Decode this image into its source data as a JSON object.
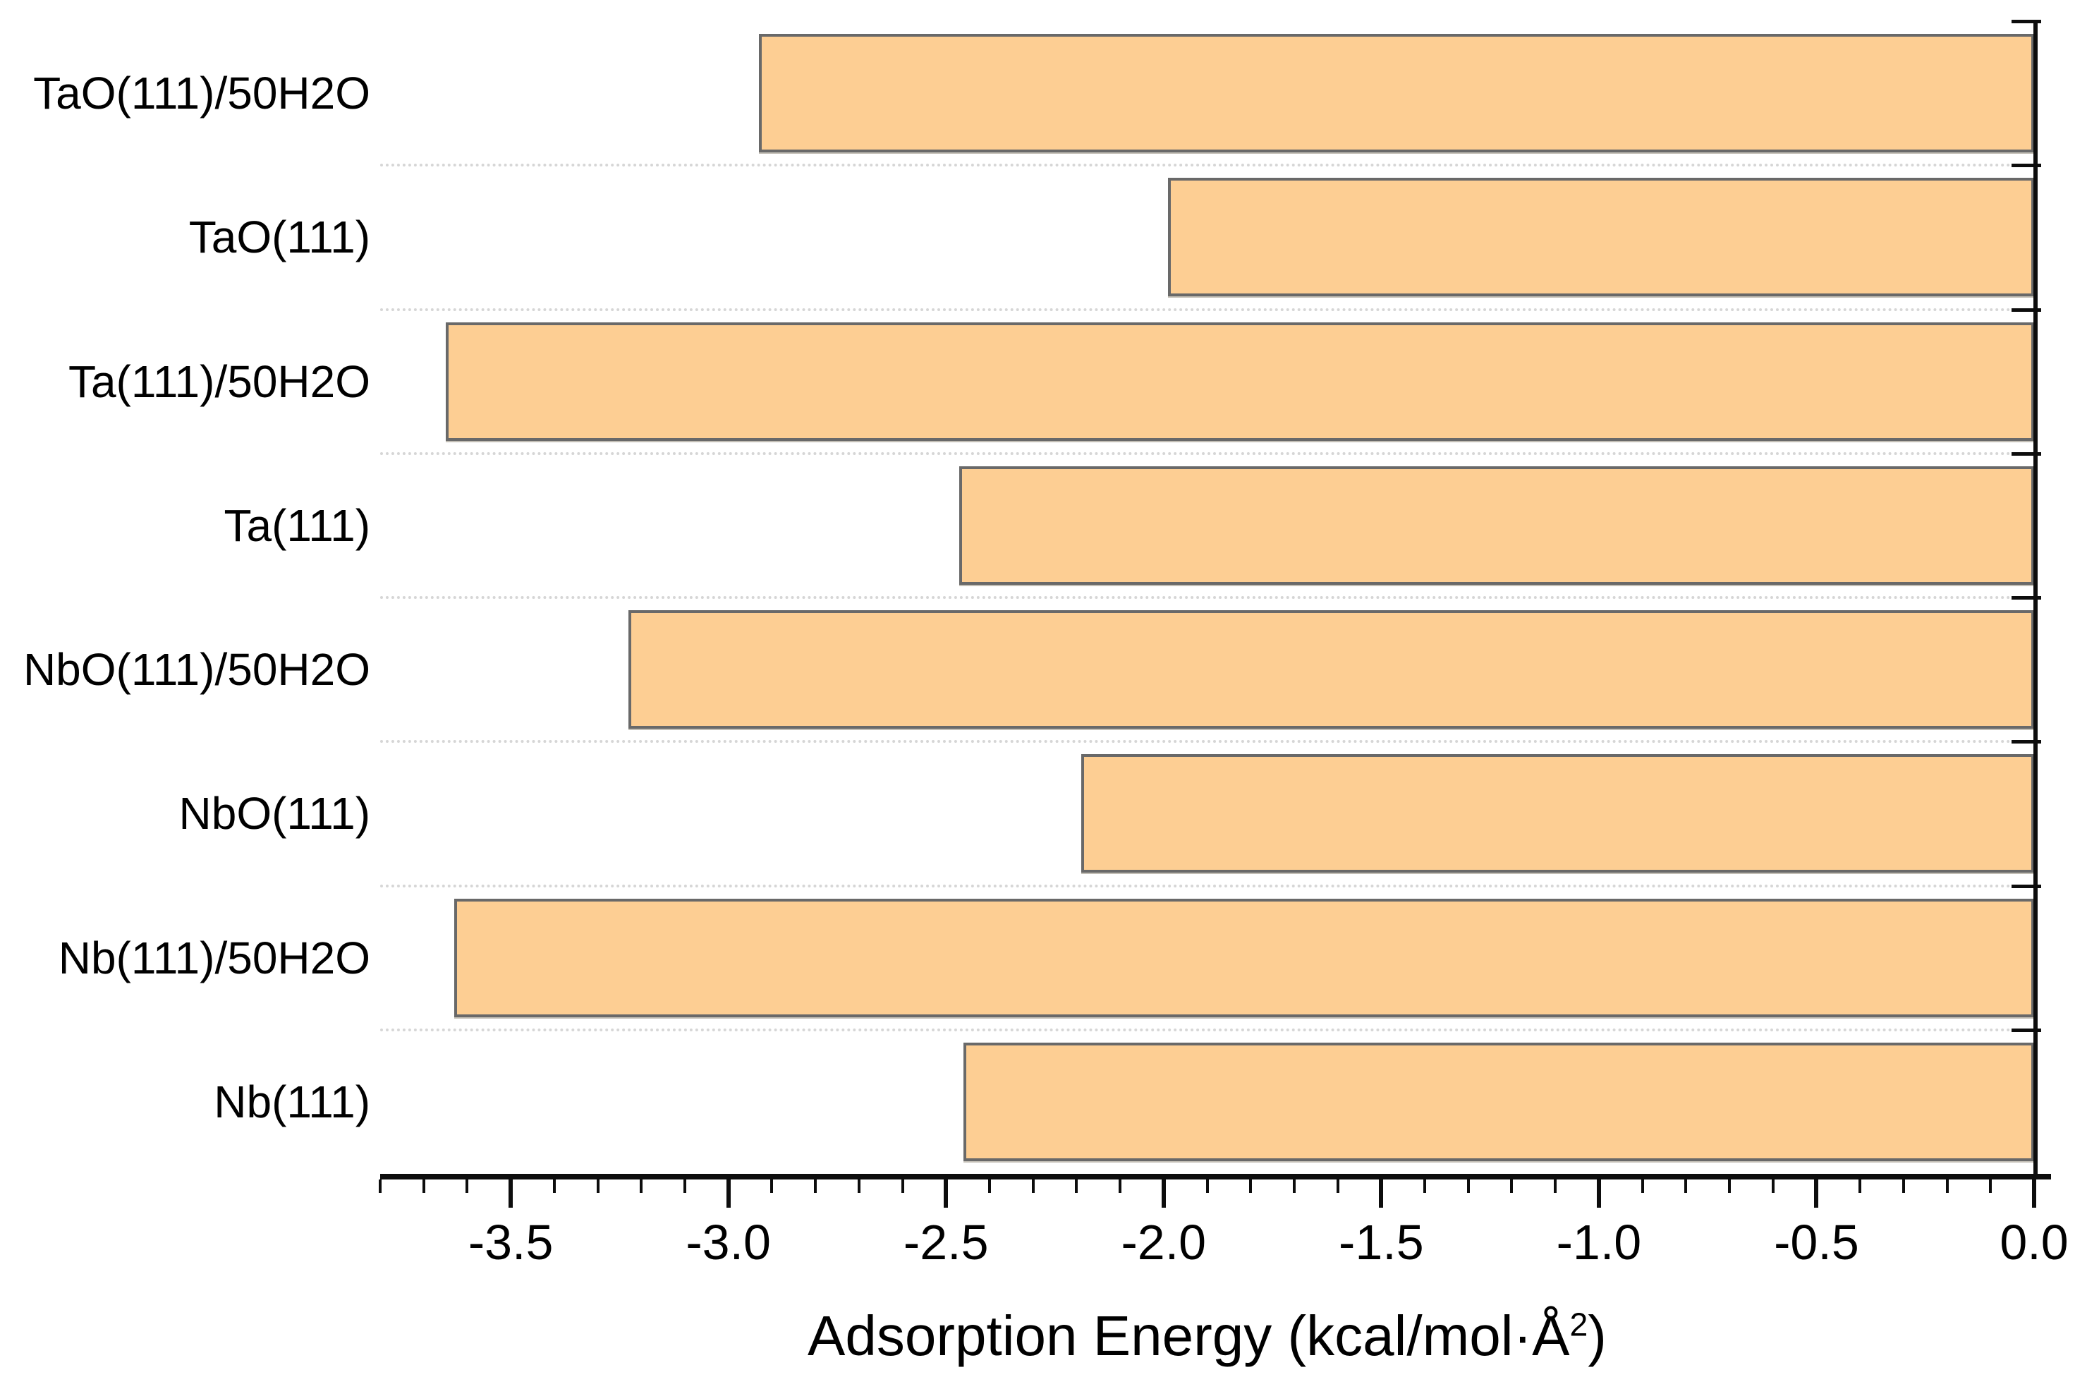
{
  "chart_data": {
    "type": "bar",
    "orientation": "horizontal",
    "title": "",
    "xlabel": "Adsorption Energy (kcal/mol·Å²)",
    "xlabel_parts": {
      "prefix": "Adsorption Energy (kcal/mol·Å",
      "superscript": "2",
      "suffix": ")"
    },
    "categories": [
      "TaO(111)/50H2O",
      "TaO(111)",
      "Ta(111)/50H2O",
      "Ta(111)",
      "NbO(111)/50H2O",
      "NbO(111)",
      "Nb(111)/50H2O",
      "Nb(111)"
    ],
    "values": [
      -2.93,
      -1.99,
      -3.65,
      -2.47,
      -3.23,
      -2.19,
      -3.63,
      -2.46
    ],
    "xlim": [
      -3.8,
      0.0
    ],
    "x_tick_labels": [
      "-3.5",
      "-3.0",
      "-2.5",
      "-2.0",
      "-1.5",
      "-1.0",
      "-0.5",
      "0.0"
    ],
    "x_major_tick_step": 0.5,
    "x_minor_tick_step": 0.1,
    "ylabel": "",
    "legend": "none",
    "grid": "dotted horizontal separators between category rows",
    "axes_shown": [
      "bottom",
      "right"
    ],
    "colors": {
      "bar_fill": "#fdce93",
      "bar_border": "#696969",
      "axis": "#0d0d0d",
      "separator": "#d6d6d6",
      "background": "#ffffff"
    }
  }
}
